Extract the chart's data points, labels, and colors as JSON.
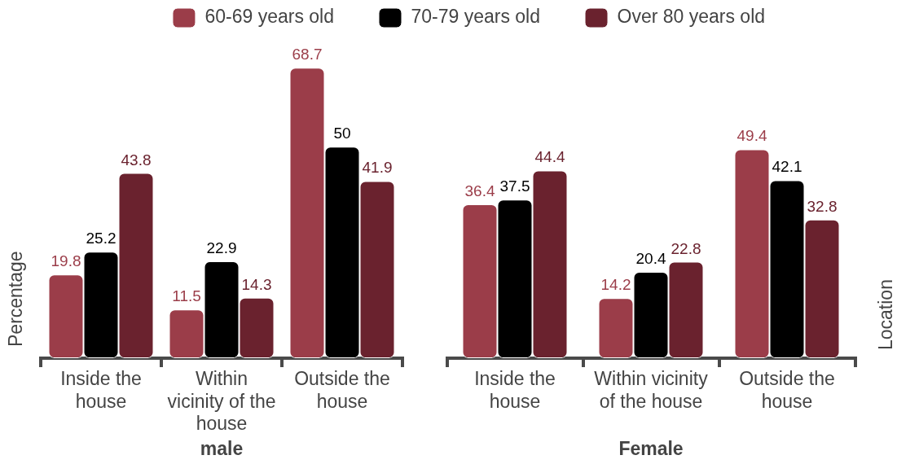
{
  "chart_data": [
    {
      "type": "bar",
      "categories": [
        "Inside the house",
        "Within vicinity of the house",
        "Outside the house"
      ],
      "series": [
        {
          "name": "60-69 years old",
          "color": "#9b3d49",
          "values": [
            19.8,
            11.5,
            68.7
          ]
        },
        {
          "name": "70-79 years old",
          "color": "#000000",
          "values": [
            25.2,
            22.9,
            50
          ]
        },
        {
          "name": "Over 80 years old",
          "color": "#6a222e",
          "values": [
            43.8,
            14.3,
            41.9
          ]
        }
      ],
      "xlabel": "male",
      "ylabel": "Percentage",
      "legend": "top",
      "data_labels": true,
      "tick_labels": "x"
    },
    {
      "type": "bar",
      "categories": [
        "Inside the house",
        "Within vicinity of the house",
        "Outside the house"
      ],
      "series": [
        {
          "color": "#9b3d49",
          "values": [
            36.4,
            14.2,
            49.4
          ]
        },
        {
          "color": "#000000",
          "values": [
            37.5,
            20.4,
            42.1
          ]
        },
        {
          "color": "#6a222e",
          "values": [
            44.4,
            22.8,
            32.8
          ]
        }
      ],
      "xlabel": "Female",
      "y2label": "Location",
      "data_labels": true,
      "tick_labels": "x"
    }
  ]
}
